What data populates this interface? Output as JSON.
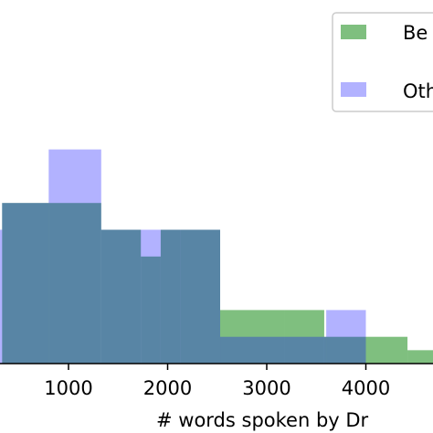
{
  "chart_data": {
    "type": "histogram",
    "title": "",
    "xlabel": "# words spoken by Dr",
    "ylabel": "",
    "xlim": [
      0,
      4700
    ],
    "ylim": [
      0,
      8.6
    ],
    "xticks": [
      1000,
      2000,
      3000,
      4000
    ],
    "xtick_labels": [
      "1000",
      "2000",
      "3000",
      "4000"
    ],
    "grid": false,
    "legend_position": "top-right",
    "series": [
      {
        "name": "Be",
        "color": "#008000",
        "alpha": 0.5,
        "bin_edges": [
          330,
          1330,
          1730,
          1930,
          2130,
          2530,
          3180,
          3580,
          4000,
          4420,
          4700
        ],
        "counts": [
          6,
          5,
          4,
          5,
          5,
          2,
          2,
          1,
          1,
          0.5
        ]
      },
      {
        "name": "Ot",
        "color": "#0000ff",
        "alpha": 0.3,
        "bin_edges": [
          0,
          330,
          800,
          1330,
          2120,
          2530,
          3600,
          4000
        ],
        "counts": [
          5,
          6,
          8,
          5,
          5,
          1,
          2
        ]
      }
    ]
  },
  "legend": {
    "items": [
      {
        "label": "Be",
        "color": "#008000",
        "alpha": 0.5
      },
      {
        "label": "Oth",
        "color": "#0000ff",
        "alpha": 0.3
      }
    ]
  }
}
